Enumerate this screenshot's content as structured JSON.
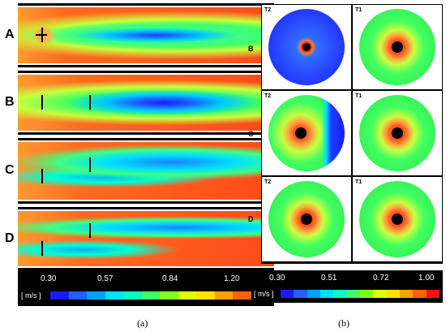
{
  "panel_a": {
    "rows": [
      "A",
      "B",
      "C",
      "D"
    ],
    "legend": {
      "unit": "[ m/s ]",
      "ticks": [
        "0.30",
        "0.57",
        "0.84",
        "1.20"
      ],
      "colors": [
        "#1a1aff",
        "#2060ff",
        "#00a0ff",
        "#00e0ff",
        "#00ffc0",
        "#40ff60",
        "#80ff20",
        "#e0ff00",
        "#ffe000",
        "#ffa000",
        "#ff6000",
        "#ff1010"
      ]
    },
    "caption": "(a)"
  },
  "panel_b": {
    "rows": [
      "B",
      "C",
      "D"
    ],
    "turbine_labels": [
      "T2",
      "T1"
    ],
    "legend": {
      "unit": "[ m/s ]",
      "ticks": [
        "0.30",
        "0.51",
        "0.72",
        "1.00"
      ],
      "colors": [
        "#1a1aff",
        "#2060ff",
        "#00a0ff",
        "#00e0ff",
        "#00ffc0",
        "#40ff60",
        "#80ff20",
        "#e0ff00",
        "#ffe000",
        "#ffa000",
        "#ff6000",
        "#ff1010"
      ]
    },
    "caption": "(b)"
  }
}
